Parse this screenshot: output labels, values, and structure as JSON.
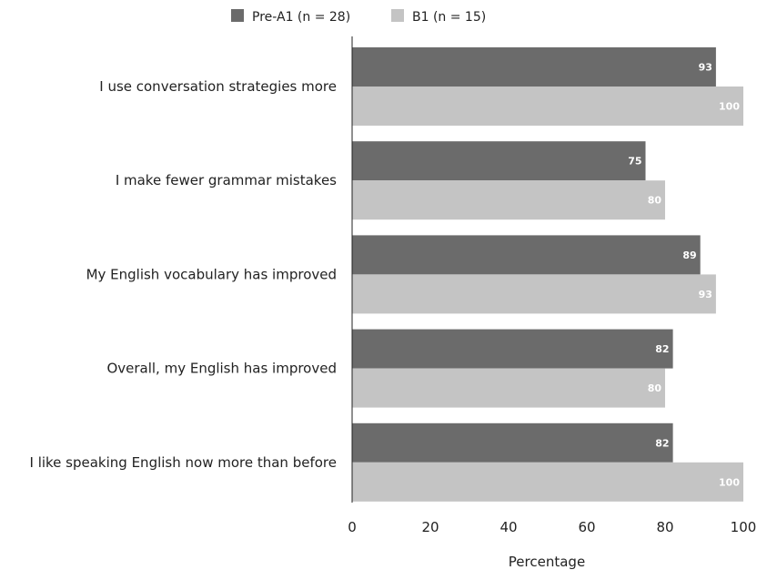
{
  "chart_data": {
    "type": "bar",
    "orientation": "horizontal",
    "categories": [
      "I use conversation strategies more",
      "I make fewer grammar mistakes",
      "My English vocabulary has improved",
      "Overall, my English has improved",
      "I like speaking English now more than before"
    ],
    "series": [
      {
        "name": "Pre-A1 (n = 28)",
        "values": [
          93,
          75,
          89,
          82,
          82
        ],
        "color": "#6b6b6b"
      },
      {
        "name": "B1 (n = 15)",
        "values": [
          100,
          80,
          93,
          80,
          100
        ],
        "color": "#c4c4c4"
      }
    ],
    "xlabel": "Percentage",
    "xlim": [
      0,
      100
    ],
    "xticks": [
      "0",
      "20",
      "40",
      "60",
      "80",
      "100"
    ],
    "legend_position": "top",
    "grid": false
  }
}
